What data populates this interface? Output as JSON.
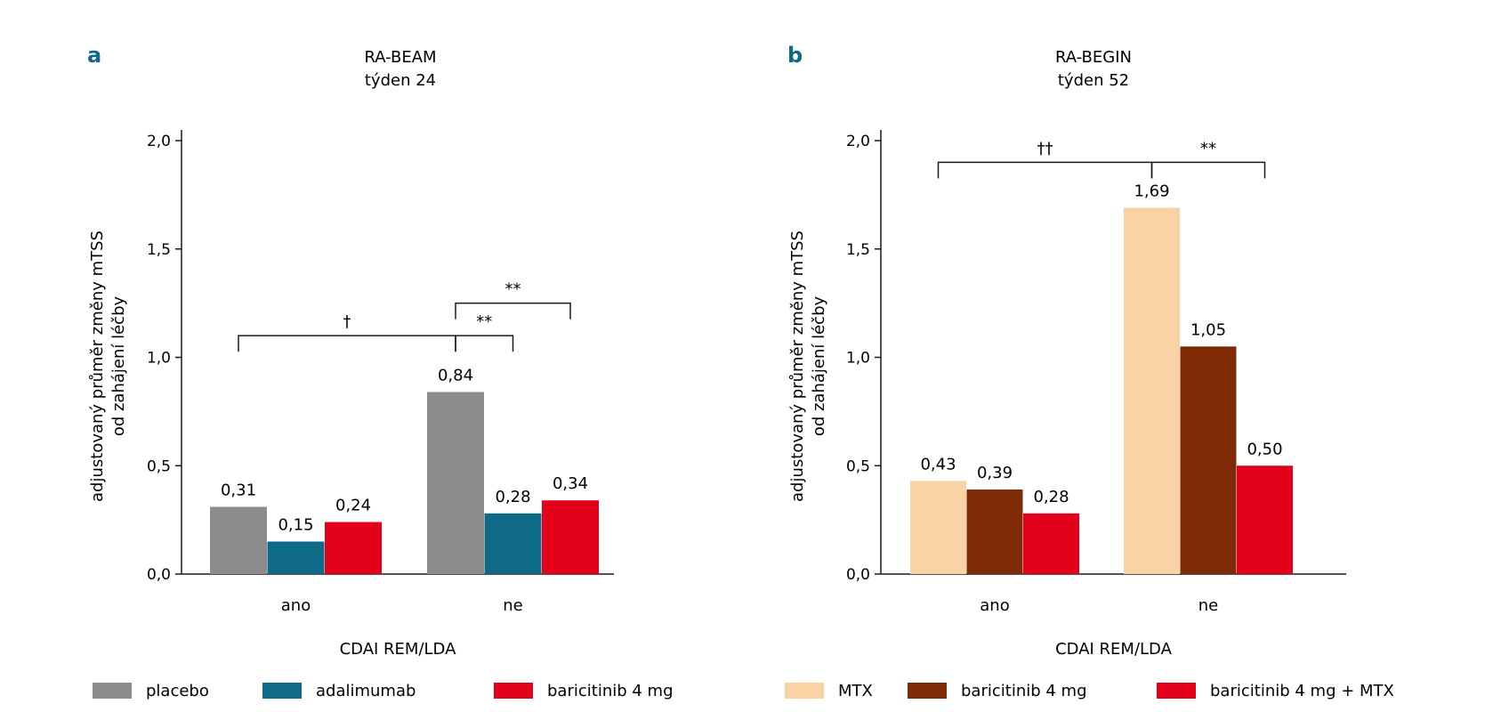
{
  "chart_data": [
    {
      "panel": "a",
      "type": "bar",
      "title_lines": [
        "RA-BEAM",
        "týden 24"
      ],
      "ylabel_lines": [
        "adjustovaný průměr změny mTSS",
        "od zahájení léčby"
      ],
      "xlabel": "CDAI REM/LDA",
      "categories": [
        "ano",
        "ne"
      ],
      "ylim": [
        0,
        2.0
      ],
      "yticks": [
        0.0,
        0.5,
        1.0,
        1.5,
        2.0
      ],
      "ytick_labels": [
        "0,0",
        "0,5",
        "1,0",
        "1,5",
        "2,0"
      ],
      "series": [
        {
          "name": "placebo",
          "color": "#8c8c8c",
          "values": [
            0.31,
            0.84
          ],
          "labels": [
            "0,31",
            "0,84"
          ]
        },
        {
          "name": "adalimumab",
          "color": "#0f6a87",
          "values": [
            0.15,
            0.28
          ],
          "labels": [
            "0,15",
            "0,28"
          ]
        },
        {
          "name": "baricitinib 4 mg",
          "color": "#e3001b",
          "values": [
            0.24,
            0.34
          ],
          "labels": [
            "0,24",
            "0,34"
          ]
        }
      ],
      "annotations": [
        {
          "symbol": "†",
          "from": [
            0,
            0
          ],
          "to": [
            1,
            0
          ],
          "y": 1.1
        },
        {
          "symbol": "**",
          "from": [
            1,
            0
          ],
          "to": [
            1,
            1
          ],
          "y": 1.1
        },
        {
          "symbol": "**",
          "from": [
            1,
            0
          ],
          "to": [
            1,
            2
          ],
          "y": 1.25
        }
      ]
    },
    {
      "panel": "b",
      "type": "bar",
      "title_lines": [
        "RA-BEGIN",
        "týden 52"
      ],
      "ylabel_lines": [
        "adjustovaný průměr změny mTSS",
        "od zahájení léčby"
      ],
      "xlabel": "CDAI REM/LDA",
      "categories": [
        "ano",
        "ne"
      ],
      "ylim": [
        0,
        2.0
      ],
      "yticks": [
        0.0,
        0.5,
        1.0,
        1.5,
        2.0
      ],
      "ytick_labels": [
        "0,0",
        "0,5",
        "1,0",
        "1,5",
        "2,0"
      ],
      "series": [
        {
          "name": "MTX",
          "color": "#f9d3a5",
          "values": [
            0.43,
            1.69
          ],
          "labels": [
            "0,43",
            "1,69"
          ]
        },
        {
          "name": "baricitinib 4 mg",
          "color": "#7f2a06",
          "values": [
            0.39,
            1.05
          ],
          "labels": [
            "0,39",
            "1,05"
          ]
        },
        {
          "name": "baricitinib 4 mg + MTX",
          "color": "#e3001b",
          "values": [
            0.28,
            0.5
          ],
          "labels": [
            "0,28",
            "0,50"
          ]
        }
      ],
      "annotations": [
        {
          "symbol": "††",
          "from": [
            0,
            0
          ],
          "to": [
            1,
            0
          ],
          "y": 1.9
        },
        {
          "symbol": "**",
          "from": [
            1,
            0
          ],
          "to": [
            1,
            2
          ],
          "y": 1.9
        }
      ]
    }
  ],
  "colors": {
    "panel_letter": "#0f6a87",
    "axis": "#1a1a1a"
  }
}
